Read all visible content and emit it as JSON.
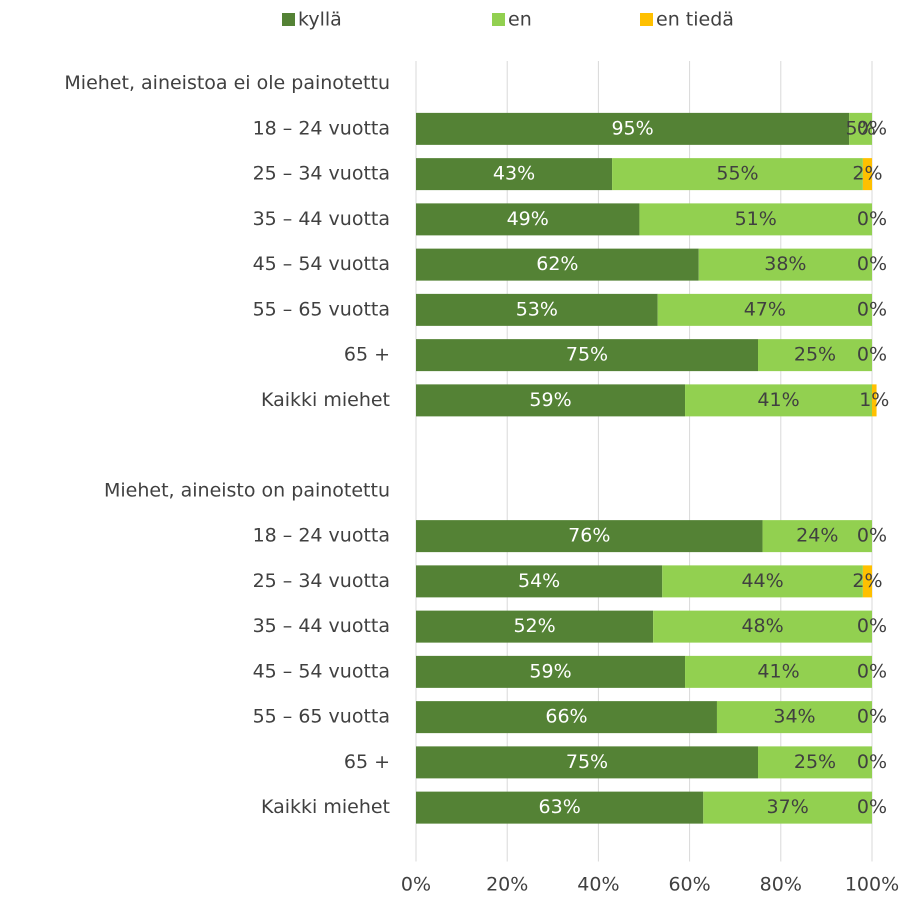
{
  "chart_data": {
    "type": "stacked_barh",
    "categories": [
      "Miehet, aineistoa ei ole painotettu",
      "18 – 24 vuotta",
      "25 – 34 vuotta",
      "35 – 44 vuotta",
      "45 – 54 vuotta",
      "55 – 65 vuotta",
      "65 +",
      "Kaikki miehet",
      null,
      "Miehet, aineisto on painotettu",
      "18 – 24 vuotta",
      "25 – 34 vuotta",
      "35 – 44 vuotta",
      "45 – 54 vuotta",
      "55 – 65 vuotta",
      "65 +",
      "Kaikki miehet",
      null
    ],
    "series": [
      {
        "name": "kyllä",
        "color": "#548235",
        "label_color": "#ffffff",
        "values": [
          null,
          95,
          43,
          49,
          62,
          53,
          75,
          59,
          null,
          null,
          76,
          54,
          52,
          59,
          66,
          75,
          63,
          null
        ],
        "value_labels": [
          null,
          "95%",
          "43%",
          "49%",
          "62%",
          "53%",
          "75%",
          "59%",
          null,
          null,
          "76%",
          "54%",
          "52%",
          "59%",
          "66%",
          "75%",
          "63%",
          null
        ]
      },
      {
        "name": "en",
        "color": "#92d050",
        "label_color": "#404040",
        "values": [
          null,
          5,
          55,
          51,
          38,
          47,
          25,
          41,
          null,
          null,
          24,
          44,
          48,
          41,
          34,
          25,
          37,
          null
        ],
        "value_labels": [
          null,
          "5%",
          "55%",
          "51%",
          "38%",
          "47%",
          "25%",
          "41%",
          null,
          null,
          "24%",
          "44%",
          "48%",
          "41%",
          "34%",
          "25%",
          "37%",
          null
        ]
      },
      {
        "name": "en tiedä",
        "color": "#ffc000",
        "label_color": "#404040",
        "values": [
          null,
          0,
          2,
          0,
          0,
          0,
          0,
          1,
          null,
          null,
          0,
          2,
          0,
          0,
          0,
          0,
          0,
          null
        ],
        "value_labels": [
          null,
          "0%",
          "2%",
          "0%",
          "0%",
          "0%",
          "0%",
          "1%",
          null,
          null,
          "0%",
          "2%",
          "0%",
          "0%",
          "0%",
          "0%",
          "0%",
          null
        ]
      }
    ],
    "xlim": [
      0,
      100
    ],
    "xticks": [
      {
        "value": 0,
        "label": "0%"
      },
      {
        "value": 20,
        "label": "20%"
      },
      {
        "value": 40,
        "label": "40%"
      },
      {
        "value": 60,
        "label": "60%"
      },
      {
        "value": 80,
        "label": "80%"
      },
      {
        "value": 100,
        "label": "100%"
      }
    ],
    "grid": true,
    "legend": "top"
  }
}
